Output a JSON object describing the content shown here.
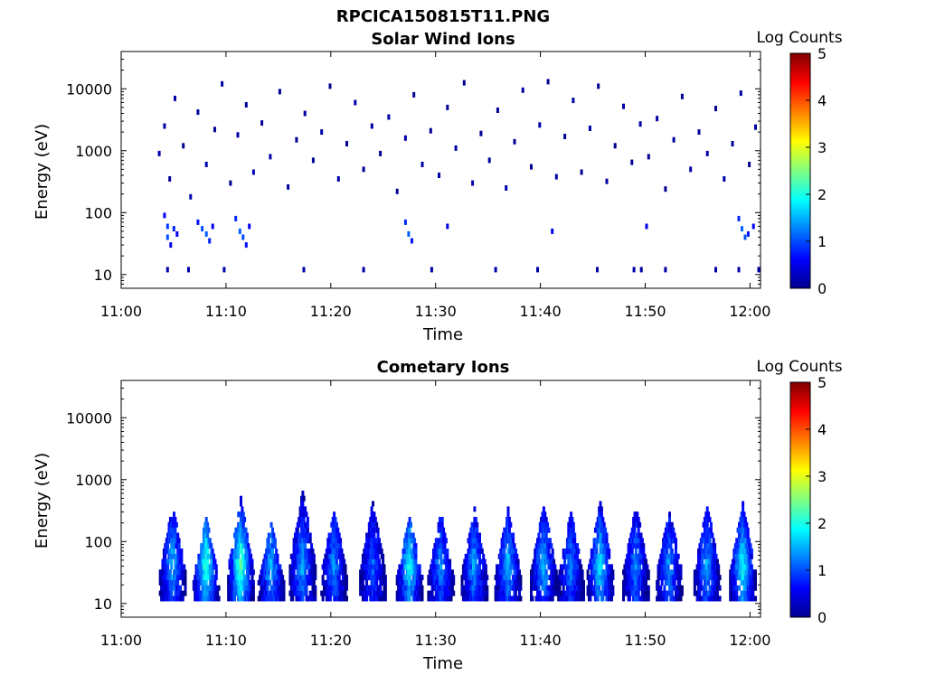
{
  "figure": {
    "filename": "RPCICA150815T11.PNG"
  },
  "chart_data": [
    {
      "type": "heatmap",
      "title": "Solar Wind Ions",
      "xlabel": "Time",
      "ylabel": "Energy (eV)",
      "x_ticks": [
        "11:00",
        "11:10",
        "11:20",
        "11:30",
        "11:40",
        "11:50",
        "12:00"
      ],
      "x_range_minutes": [
        0,
        61
      ],
      "y_scale": "log",
      "y_ticks": [
        10,
        100,
        1000,
        10000
      ],
      "y_range": [
        6,
        40000
      ],
      "colorbar": {
        "label": "Log Counts",
        "ticks": [
          0,
          1,
          2,
          3,
          4,
          5
        ],
        "range": [
          0,
          5
        ],
        "colormap": "jet"
      },
      "cells": [
        [
          3.5,
          900,
          0.2
        ],
        [
          4.0,
          2500,
          0.2
        ],
        [
          4.5,
          350,
          0.1
        ],
        [
          5.0,
          7000,
          0.2
        ],
        [
          5.8,
          1200,
          0.1
        ],
        [
          6.5,
          180,
          0.2
        ],
        [
          7.2,
          4200,
          0.1
        ],
        [
          8.0,
          600,
          0.2
        ],
        [
          8.8,
          2200,
          0.1
        ],
        [
          9.5,
          12000,
          0.2
        ],
        [
          10.3,
          300,
          0.1
        ],
        [
          11.0,
          1800,
          0.2
        ],
        [
          11.8,
          5500,
          0.1
        ],
        [
          12.5,
          450,
          0.2
        ],
        [
          13.3,
          2800,
          0.1
        ],
        [
          14.1,
          800,
          0.2
        ],
        [
          15.0,
          9000,
          0.1
        ],
        [
          15.8,
          260,
          0.2
        ],
        [
          16.6,
          1500,
          0.1
        ],
        [
          17.4,
          4000,
          0.2
        ],
        [
          18.2,
          700,
          0.1
        ],
        [
          19.0,
          2000,
          0.2
        ],
        [
          19.8,
          11000,
          0.1
        ],
        [
          20.6,
          350,
          0.2
        ],
        [
          21.4,
          1300,
          0.1
        ],
        [
          22.2,
          6000,
          0.2
        ],
        [
          23.0,
          500,
          0.1
        ],
        [
          23.8,
          2500,
          0.2
        ],
        [
          24.6,
          900,
          0.1
        ],
        [
          25.4,
          3500,
          0.2
        ],
        [
          26.2,
          220,
          0.1
        ],
        [
          27.0,
          1600,
          0.2
        ],
        [
          27.8,
          8000,
          0.1
        ],
        [
          28.6,
          600,
          0.2
        ],
        [
          29.4,
          2100,
          0.1
        ],
        [
          30.2,
          400,
          0.2
        ],
        [
          31.0,
          5000,
          0.1
        ],
        [
          31.8,
          1100,
          0.2
        ],
        [
          32.6,
          12500,
          0.1
        ],
        [
          33.4,
          300,
          0.2
        ],
        [
          34.2,
          1900,
          0.1
        ],
        [
          35.0,
          700,
          0.2
        ],
        [
          35.8,
          4500,
          0.1
        ],
        [
          36.6,
          250,
          0.2
        ],
        [
          37.4,
          1400,
          0.1
        ],
        [
          38.2,
          9500,
          0.2
        ],
        [
          39.0,
          550,
          0.1
        ],
        [
          39.8,
          2600,
          0.2
        ],
        [
          40.6,
          13000,
          0.1
        ],
        [
          41.4,
          380,
          0.2
        ],
        [
          42.2,
          1700,
          0.1
        ],
        [
          43.0,
          6500,
          0.2
        ],
        [
          43.8,
          450,
          0.1
        ],
        [
          44.6,
          2300,
          0.2
        ],
        [
          45.4,
          11000,
          0.1
        ],
        [
          46.2,
          320,
          0.2
        ],
        [
          47.0,
          1200,
          0.1
        ],
        [
          47.8,
          5200,
          0.2
        ],
        [
          48.6,
          650,
          0.1
        ],
        [
          49.4,
          2700,
          0.2
        ],
        [
          50.2,
          800,
          0.1
        ],
        [
          51.0,
          3300,
          0.2
        ],
        [
          51.8,
          240,
          0.1
        ],
        [
          52.6,
          1500,
          0.2
        ],
        [
          53.4,
          7500,
          0.1
        ],
        [
          54.2,
          500,
          0.2
        ],
        [
          55.0,
          2000,
          0.1
        ],
        [
          55.8,
          900,
          0.2
        ],
        [
          56.6,
          4800,
          0.1
        ],
        [
          57.4,
          350,
          0.2
        ],
        [
          58.2,
          1300,
          0.1
        ],
        [
          59.0,
          8500,
          0.2
        ],
        [
          59.8,
          600,
          0.1
        ],
        [
          60.4,
          2400,
          0.2
        ],
        [
          4.0,
          90,
          0.6
        ],
        [
          4.3,
          60,
          0.9
        ],
        [
          4.3,
          40,
          1.0
        ],
        [
          4.6,
          30,
          0.5
        ],
        [
          4.9,
          55,
          0.8
        ],
        [
          5.2,
          45,
          0.6
        ],
        [
          7.2,
          70,
          0.7
        ],
        [
          7.6,
          55,
          1.0
        ],
        [
          8.0,
          45,
          1.1
        ],
        [
          8.3,
          35,
          0.8
        ],
        [
          8.6,
          60,
          0.6
        ],
        [
          10.8,
          80,
          0.8
        ],
        [
          11.2,
          50,
          1.1
        ],
        [
          11.5,
          40,
          1.0
        ],
        [
          11.8,
          30,
          0.7
        ],
        [
          12.1,
          60,
          0.6
        ],
        [
          27.0,
          70,
          0.8
        ],
        [
          27.3,
          45,
          1.1
        ],
        [
          27.6,
          35,
          0.7
        ],
        [
          31.0,
          60,
          0.5
        ],
        [
          41.0,
          50,
          0.5
        ],
        [
          50.0,
          60,
          0.5
        ],
        [
          58.8,
          80,
          0.8
        ],
        [
          59.1,
          55,
          1.1
        ],
        [
          59.4,
          40,
          1.0
        ],
        [
          59.7,
          45,
          0.7
        ],
        [
          60.2,
          60,
          0.6
        ],
        [
          4.3,
          12,
          0.2
        ],
        [
          6.3,
          12,
          0.2
        ],
        [
          9.7,
          12,
          0.2
        ],
        [
          17.3,
          12,
          0.2
        ],
        [
          23.0,
          12,
          0.2
        ],
        [
          29.5,
          12,
          0.2
        ],
        [
          35.6,
          12,
          0.2
        ],
        [
          39.6,
          12,
          0.2
        ],
        [
          45.3,
          12,
          0.2
        ],
        [
          48.8,
          12,
          0.2
        ],
        [
          49.5,
          12,
          0.2
        ],
        [
          51.8,
          12,
          0.2
        ],
        [
          56.6,
          12,
          0.2
        ],
        [
          58.8,
          12,
          0.2
        ],
        [
          60.7,
          12,
          0.2
        ]
      ]
    },
    {
      "type": "heatmap",
      "title": "Cometary Ions",
      "xlabel": "Time",
      "ylabel": "Energy (eV)",
      "x_ticks": [
        "11:00",
        "11:10",
        "11:20",
        "11:30",
        "11:40",
        "11:50",
        "12:00"
      ],
      "x_range_minutes": [
        0,
        61
      ],
      "y_scale": "log",
      "y_ticks": [
        10,
        100,
        1000,
        10000
      ],
      "y_range": [
        6,
        40000
      ],
      "colorbar": {
        "label": "Log Counts",
        "ticks": [
          0,
          1,
          2,
          3,
          4,
          5
        ],
        "range": [
          0,
          5
        ],
        "colormap": "jet"
      },
      "bursts": [
        {
          "t": 4.8,
          "peak": 1.6,
          "emax": 400
        },
        {
          "t": 8.0,
          "peak": 2.2,
          "emax": 250
        },
        {
          "t": 11.3,
          "peak": 2.4,
          "emax": 500
        },
        {
          "t": 14.2,
          "peak": 1.6,
          "emax": 200
        },
        {
          "t": 17.2,
          "peak": 1.5,
          "emax": 700
        },
        {
          "t": 20.2,
          "peak": 1.4,
          "emax": 350
        },
        {
          "t": 23.9,
          "peak": 1.2,
          "emax": 450
        },
        {
          "t": 27.4,
          "peak": 2.0,
          "emax": 280
        },
        {
          "t": 30.4,
          "peak": 1.4,
          "emax": 300
        },
        {
          "t": 33.6,
          "peak": 1.5,
          "emax": 350
        },
        {
          "t": 36.8,
          "peak": 1.6,
          "emax": 350
        },
        {
          "t": 40.2,
          "peak": 1.6,
          "emax": 420
        },
        {
          "t": 42.8,
          "peak": 1.3,
          "emax": 300
        },
        {
          "t": 45.6,
          "peak": 1.9,
          "emax": 450
        },
        {
          "t": 49.0,
          "peak": 1.4,
          "emax": 400
        },
        {
          "t": 52.2,
          "peak": 1.4,
          "emax": 350
        },
        {
          "t": 55.8,
          "peak": 1.5,
          "emax": 400
        },
        {
          "t": 59.2,
          "peak": 2.0,
          "emax": 420
        }
      ]
    }
  ]
}
